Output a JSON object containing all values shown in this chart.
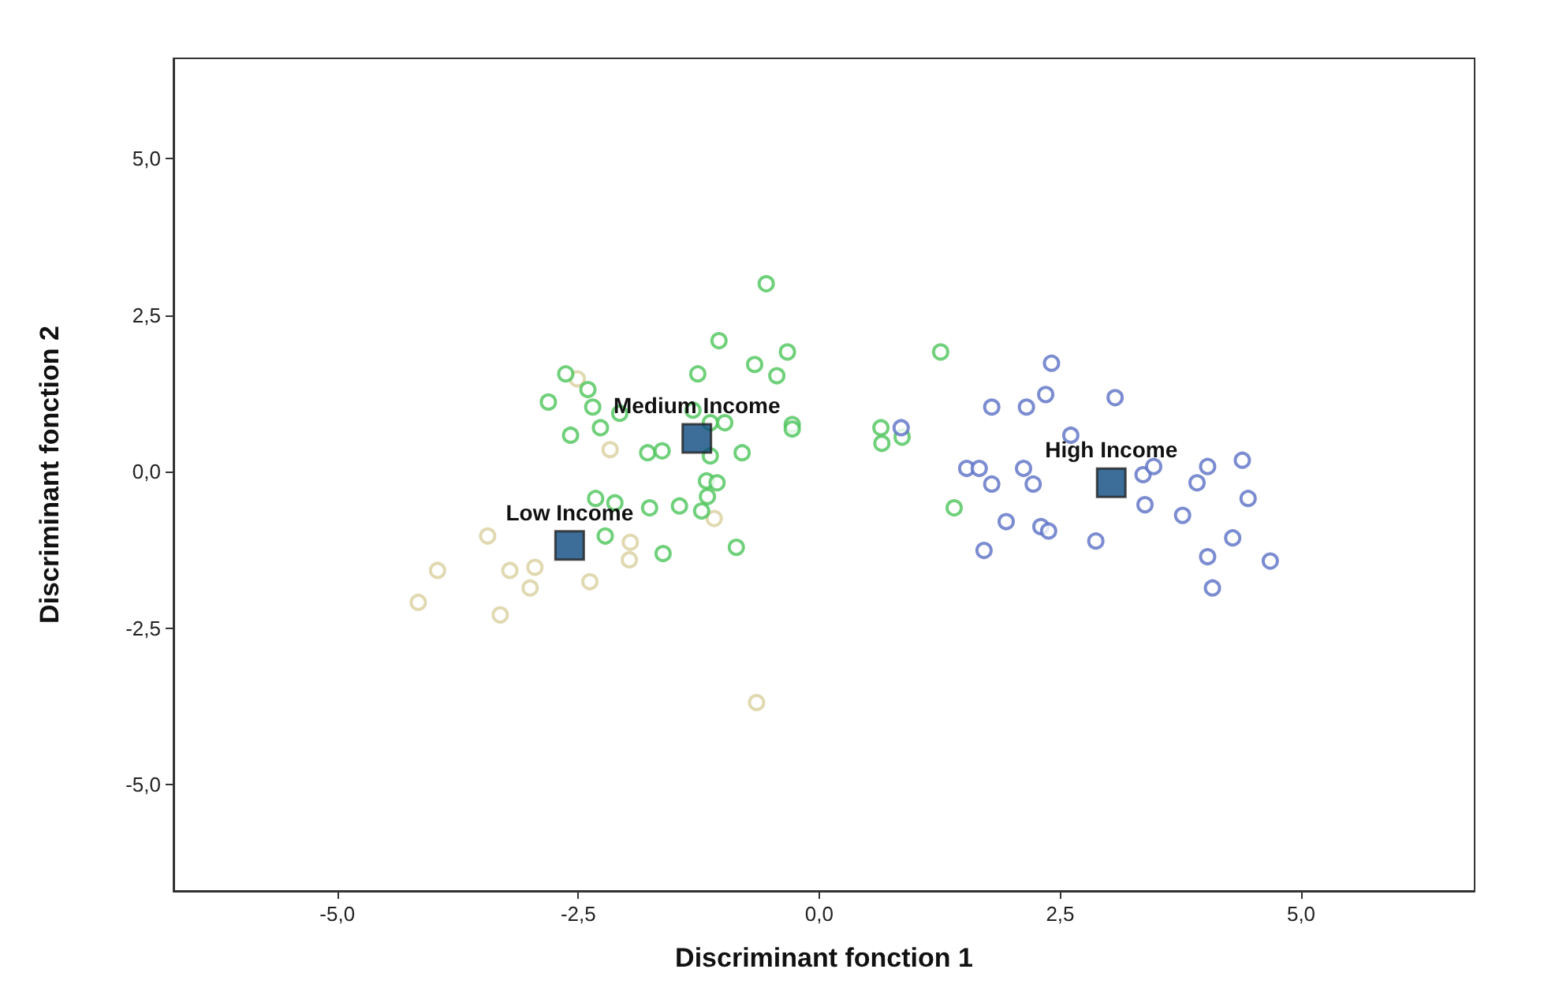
{
  "chart_data": {
    "type": "scatter",
    "xlabel": "Discriminant fonction 1",
    "ylabel": "Discriminant fonction 2",
    "xlim": [
      -6.7,
      6.8
    ],
    "ylim": [
      -6.7,
      6.6
    ],
    "xticks": [
      {
        "value": -5,
        "label": "-5,0"
      },
      {
        "value": -2.5,
        "label": "-2,5"
      },
      {
        "value": 0,
        "label": "0,0"
      },
      {
        "value": 2.5,
        "label": "2,5"
      },
      {
        "value": 5,
        "label": "5,0"
      }
    ],
    "yticks": [
      {
        "value": -5,
        "label": "-5,0"
      },
      {
        "value": -2.5,
        "label": "-2,5"
      },
      {
        "value": 0,
        "label": "0,0"
      },
      {
        "value": 2.5,
        "label": "2,5"
      },
      {
        "value": 5,
        "label": "5,0"
      }
    ],
    "grid": false,
    "marker": "circle",
    "series": [
      {
        "color": "#d8cf9e",
        "x": [
          -2.51,
          -2.17,
          -1.09,
          -1.96,
          -1.97,
          -3.44,
          -3.96,
          -3.21,
          -2.95,
          -3.0,
          -2.38,
          -4.16,
          -3.31,
          -0.65
        ],
        "values": [
          1.48,
          0.35,
          -0.75,
          -1.13,
          -1.41,
          -1.03,
          -1.58,
          -1.58,
          -1.53,
          -1.86,
          -1.76,
          -2.09,
          -2.29,
          -3.69
        ]
      },
      {
        "color": "#4cc45a",
        "x": [
          -0.55,
          -1.04,
          -0.33,
          -0.44,
          -0.67,
          -1.26,
          1.26,
          -2.63,
          -2.4,
          -2.81,
          -2.35,
          -2.07,
          -2.58,
          -2.27,
          -1.78,
          -1.63,
          -1.31,
          -1.13,
          -0.98,
          -1.13,
          -0.8,
          -1.17,
          -1.06,
          -1.16,
          -1.45,
          -1.22,
          -2.32,
          -2.12,
          -1.76,
          -2.22,
          -1.62,
          -0.86,
          -0.28,
          -0.28,
          0.64,
          0.65,
          0.86,
          1.4
        ],
        "values": [
          3.0,
          2.09,
          1.91,
          1.53,
          1.71,
          1.56,
          1.91,
          1.56,
          1.31,
          1.11,
          1.03,
          0.93,
          0.58,
          0.7,
          0.3,
          0.33,
          0.98,
          0.78,
          0.78,
          0.25,
          0.3,
          -0.15,
          -0.18,
          -0.4,
          -0.55,
          -0.63,
          -0.43,
          -0.5,
          -0.58,
          -1.03,
          -1.31,
          -1.21,
          0.75,
          0.68,
          0.7,
          0.45,
          0.55,
          -0.58
        ]
      },
      {
        "color": "#5a6fc4",
        "x": [
          0.85,
          2.41,
          1.79,
          2.15,
          2.35,
          3.07,
          2.61,
          1.53,
          1.66,
          2.12,
          1.79,
          2.22,
          3.36,
          3.47,
          4.03,
          4.39,
          3.92,
          4.45,
          3.38,
          3.77,
          1.94,
          2.3,
          2.38,
          1.71,
          2.87,
          4.29,
          4.03,
          4.68,
          4.08
        ],
        "values": [
          0.7,
          1.73,
          1.03,
          1.03,
          1.23,
          1.18,
          0.58,
          0.05,
          0.05,
          0.05,
          -0.2,
          -0.2,
          -0.05,
          0.08,
          0.08,
          0.18,
          -0.18,
          -0.43,
          -0.53,
          -0.7,
          -0.8,
          -0.88,
          -0.95,
          -1.26,
          -1.11,
          -1.06,
          -1.36,
          -1.43,
          -1.86
        ]
      },
      {
        "color": "#0b4a80",
        "marker": "square",
        "x": [
          -2.59,
          -1.27,
          3.03
        ],
        "values": [
          -1.18,
          0.53,
          -0.18
        ]
      }
    ],
    "annotations": [
      {
        "text": "Low Income",
        "x": -2.59,
        "y": -1.18
      },
      {
        "text": "Medium Income",
        "x": -1.27,
        "y": 0.53
      },
      {
        "text": "High Income",
        "x": 3.03,
        "y": -0.18
      }
    ]
  }
}
